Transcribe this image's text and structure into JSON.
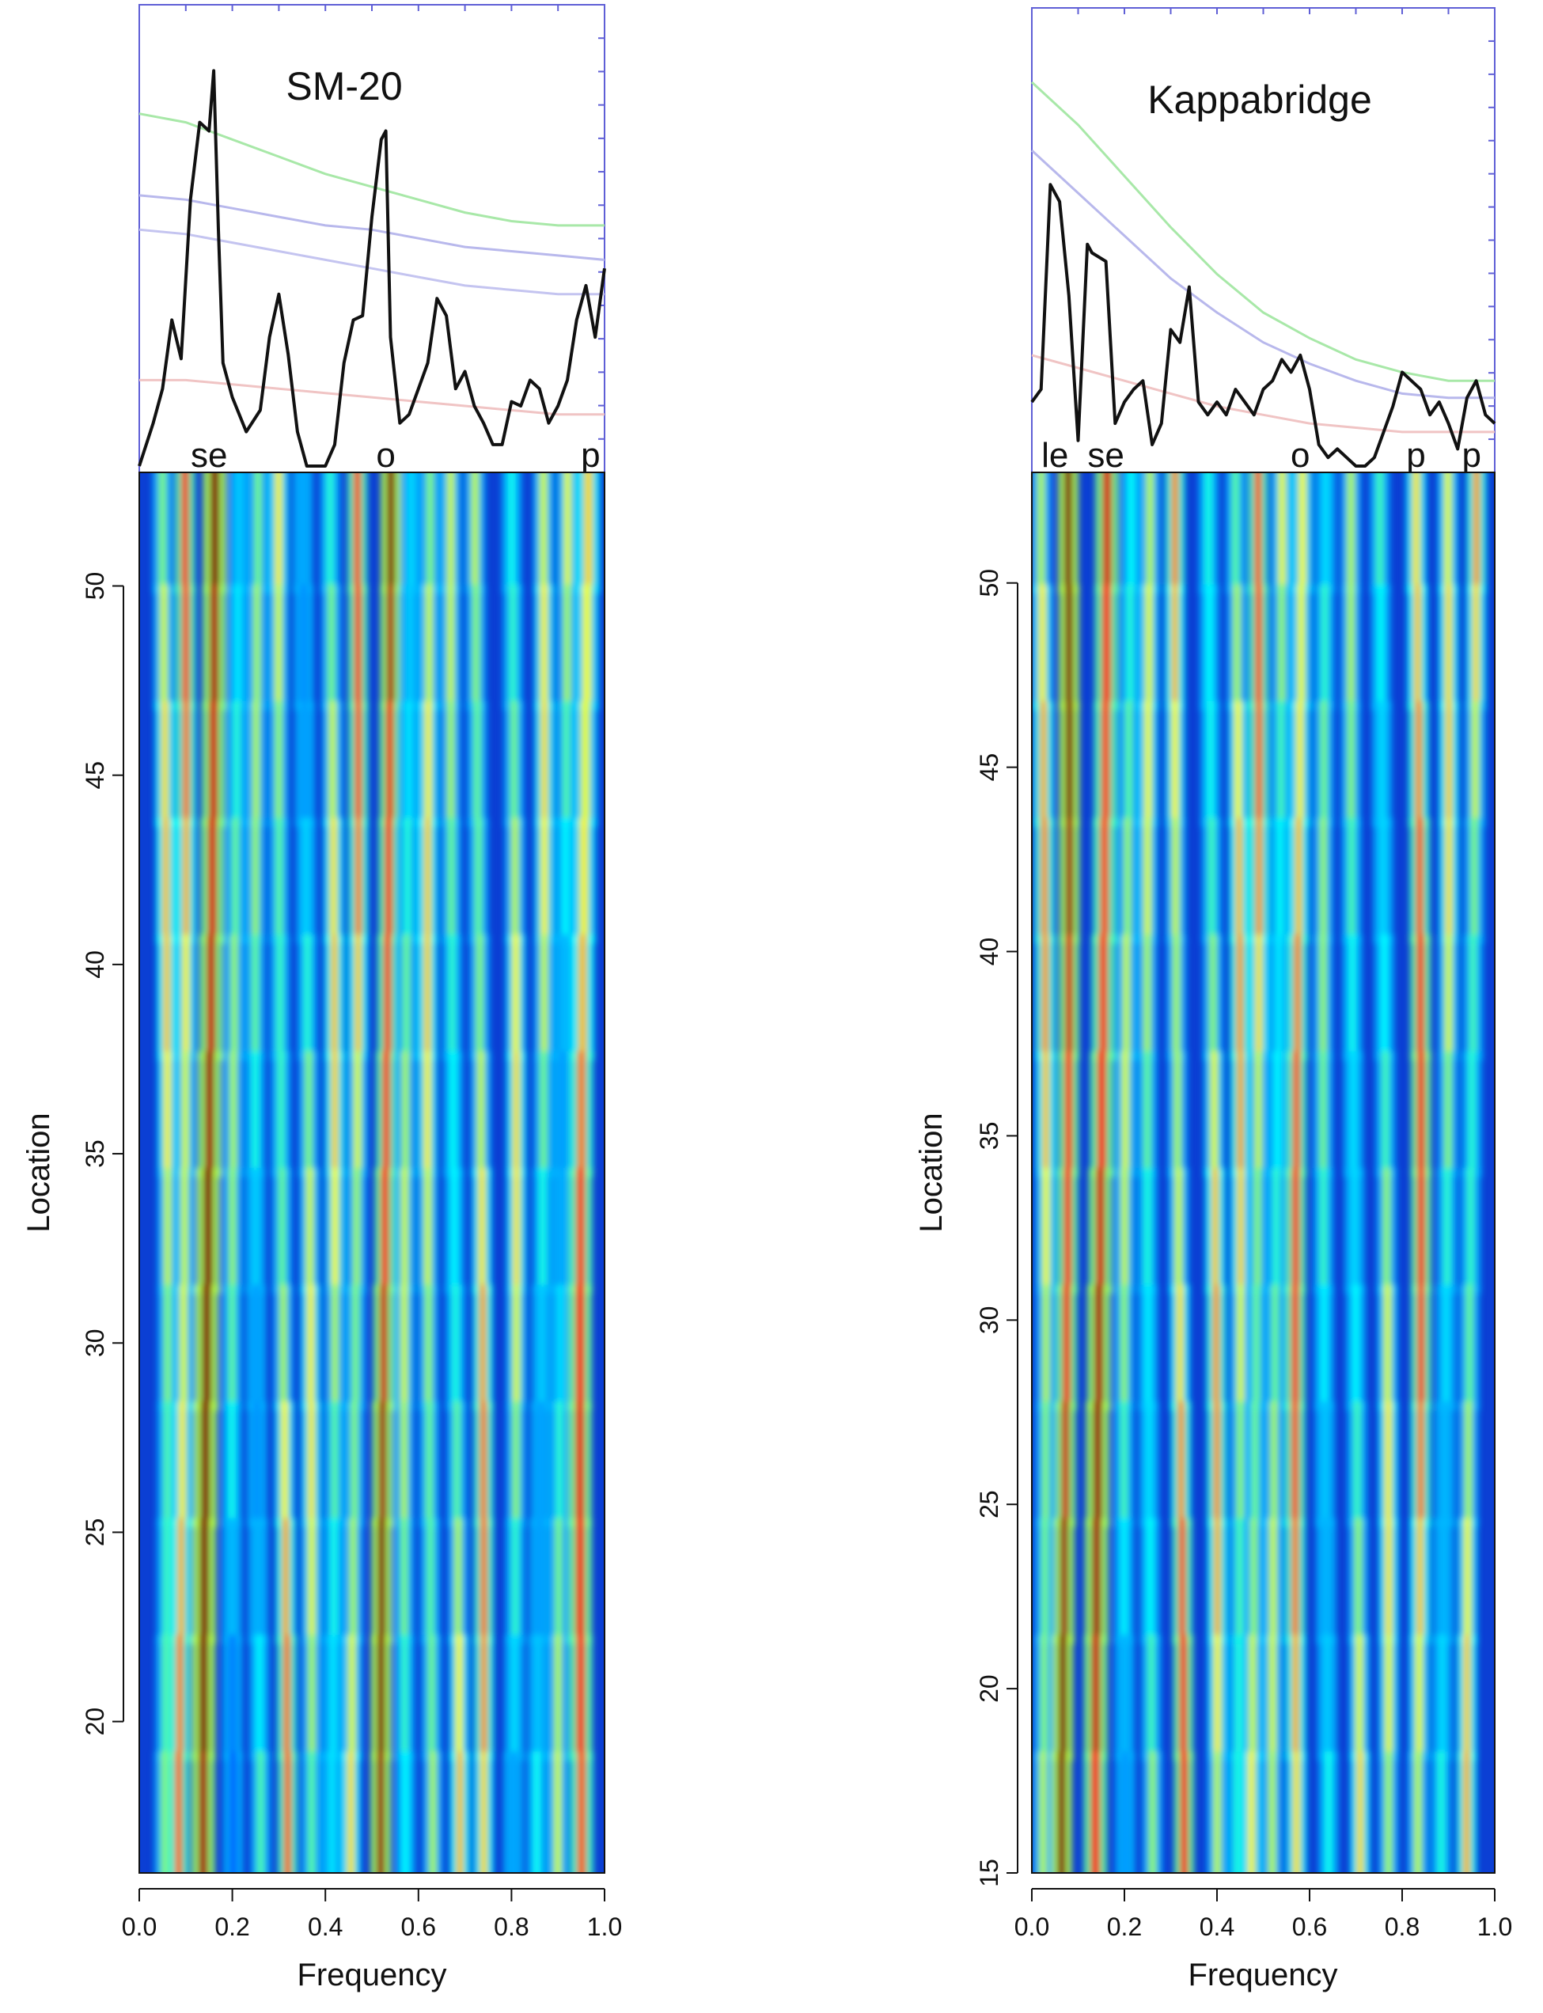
{
  "chart_data": [
    {
      "type": "heatmap",
      "title": "SM-20",
      "xlabel": "Frequency",
      "ylabel": "Location",
      "xlim": [
        0,
        1
      ],
      "ylim": [
        16,
        53
      ],
      "x_ticks": [
        "0.0",
        "0.2",
        "0.4",
        "0.6",
        "0.8",
        "1.0"
      ],
      "y_ticks": [
        "20",
        "25",
        "30",
        "35",
        "40",
        "45",
        "50"
      ],
      "band_labels": [
        {
          "text": "se",
          "x": 0.15
        },
        {
          "text": "o",
          "x": 0.53
        },
        {
          "text": "p",
          "x": 0.97
        }
      ],
      "spectrum": {
        "x": [
          0.0,
          0.03,
          0.05,
          0.07,
          0.09,
          0.11,
          0.13,
          0.15,
          0.16,
          0.17,
          0.18,
          0.2,
          0.23,
          0.26,
          0.28,
          0.3,
          0.32,
          0.34,
          0.36,
          0.38,
          0.4,
          0.42,
          0.44,
          0.46,
          0.48,
          0.5,
          0.52,
          0.53,
          0.54,
          0.56,
          0.58,
          0.6,
          0.62,
          0.64,
          0.66,
          0.68,
          0.7,
          0.72,
          0.74,
          0.76,
          0.78,
          0.8,
          0.82,
          0.84,
          0.86,
          0.88,
          0.9,
          0.92,
          0.94,
          0.96,
          0.98,
          1.0
        ],
        "y": [
          0.0,
          0.1,
          0.18,
          0.34,
          0.25,
          0.62,
          0.8,
          0.78,
          0.92,
          0.55,
          0.24,
          0.16,
          0.08,
          0.13,
          0.3,
          0.4,
          0.26,
          0.08,
          0.0,
          0.0,
          0.0,
          0.05,
          0.24,
          0.34,
          0.35,
          0.58,
          0.76,
          0.78,
          0.3,
          0.1,
          0.12,
          0.18,
          0.24,
          0.39,
          0.35,
          0.18,
          0.22,
          0.14,
          0.1,
          0.05,
          0.05,
          0.15,
          0.14,
          0.2,
          0.18,
          0.1,
          0.14,
          0.2,
          0.34,
          0.42,
          0.3,
          0.46
        ]
      },
      "significance_levels": [
        {
          "color": "#a8e8a8",
          "y": [
            0.82,
            0.8,
            0.76,
            0.72,
            0.68,
            0.65,
            0.62,
            0.59,
            0.57,
            0.56,
            0.56
          ]
        },
        {
          "color": "#b8b8ec",
          "y": [
            0.63,
            0.62,
            0.6,
            0.58,
            0.56,
            0.55,
            0.53,
            0.51,
            0.5,
            0.49,
            0.48
          ]
        },
        {
          "color": "#c4c4f0",
          "y": [
            0.55,
            0.54,
            0.52,
            0.5,
            0.48,
            0.46,
            0.44,
            0.42,
            0.41,
            0.4,
            0.4
          ]
        },
        {
          "color": "#f0c4c4",
          "y": [
            0.2,
            0.2,
            0.19,
            0.18,
            0.17,
            0.16,
            0.15,
            0.14,
            0.13,
            0.12,
            0.12
          ]
        }
      ],
      "bands": [
        {
          "f": 0.05,
          "w": 0.012,
          "amp": 0.5
        },
        {
          "f": 0.09,
          "w": 0.012,
          "amp": 0.64
        },
        {
          "f": 0.15,
          "w": 0.016,
          "amp": 0.98
        },
        {
          "f": 0.21,
          "w": 0.01,
          "amp": 0.45
        },
        {
          "f": 0.26,
          "w": 0.01,
          "amp": 0.48
        },
        {
          "f": 0.31,
          "w": 0.012,
          "amp": 0.6
        },
        {
          "f": 0.36,
          "w": 0.01,
          "amp": 0.42
        },
        {
          "f": 0.41,
          "w": 0.01,
          "amp": 0.45
        },
        {
          "f": 0.46,
          "w": 0.012,
          "amp": 0.62
        },
        {
          "f": 0.53,
          "w": 0.014,
          "amp": 0.95
        },
        {
          "f": 0.58,
          "w": 0.01,
          "amp": 0.52
        },
        {
          "f": 0.63,
          "w": 0.012,
          "amp": 0.6
        },
        {
          "f": 0.68,
          "w": 0.01,
          "amp": 0.48
        },
        {
          "f": 0.73,
          "w": 0.012,
          "amp": 0.55
        },
        {
          "f": 0.8,
          "w": 0.01,
          "amp": 0.45
        },
        {
          "f": 0.86,
          "w": 0.01,
          "amp": 0.48
        },
        {
          "f": 0.91,
          "w": 0.01,
          "amp": 0.5
        },
        {
          "f": 0.96,
          "w": 0.016,
          "amp": 0.8
        }
      ]
    },
    {
      "type": "heatmap",
      "title": "Kappabridge",
      "xlabel": "Frequency",
      "ylabel": "Location",
      "xlim": [
        0,
        1
      ],
      "ylim": [
        15,
        53
      ],
      "x_ticks": [
        "0.0",
        "0.2",
        "0.4",
        "0.6",
        "0.8",
        "1.0"
      ],
      "y_ticks": [
        "15",
        "20",
        "25",
        "30",
        "35",
        "40",
        "45",
        "50"
      ],
      "band_labels": [
        {
          "text": "le",
          "x": 0.05
        },
        {
          "text": "se",
          "x": 0.16
        },
        {
          "text": "o",
          "x": 0.58
        },
        {
          "text": "p",
          "x": 0.83
        },
        {
          "text": "p",
          "x": 0.95
        }
      ],
      "spectrum": {
        "x": [
          0.0,
          0.02,
          0.04,
          0.06,
          0.08,
          0.1,
          0.12,
          0.13,
          0.16,
          0.18,
          0.2,
          0.22,
          0.24,
          0.26,
          0.28,
          0.3,
          0.32,
          0.34,
          0.36,
          0.38,
          0.4,
          0.42,
          0.44,
          0.46,
          0.48,
          0.5,
          0.52,
          0.54,
          0.56,
          0.58,
          0.6,
          0.62,
          0.64,
          0.66,
          0.68,
          0.7,
          0.72,
          0.74,
          0.76,
          0.78,
          0.8,
          0.82,
          0.84,
          0.86,
          0.88,
          0.9,
          0.92,
          0.94,
          0.96,
          0.98,
          1.0
        ],
        "y": [
          0.15,
          0.18,
          0.66,
          0.62,
          0.4,
          0.06,
          0.52,
          0.5,
          0.48,
          0.1,
          0.15,
          0.18,
          0.2,
          0.05,
          0.1,
          0.32,
          0.29,
          0.42,
          0.15,
          0.12,
          0.15,
          0.12,
          0.18,
          0.15,
          0.12,
          0.18,
          0.2,
          0.25,
          0.22,
          0.26,
          0.18,
          0.05,
          0.02,
          0.04,
          0.02,
          0.0,
          0.0,
          0.02,
          0.08,
          0.14,
          0.22,
          0.2,
          0.18,
          0.12,
          0.15,
          0.1,
          0.04,
          0.16,
          0.2,
          0.12,
          0.1
        ]
      },
      "significance_levels": [
        {
          "color": "#a8e8a8",
          "y": [
            0.9,
            0.8,
            0.68,
            0.56,
            0.45,
            0.36,
            0.3,
            0.25,
            0.22,
            0.2,
            0.2
          ]
        },
        {
          "color": "#b8b8ec",
          "y": [
            0.74,
            0.64,
            0.54,
            0.44,
            0.36,
            0.29,
            0.24,
            0.2,
            0.17,
            0.16,
            0.16
          ]
        },
        {
          "color": "#f0c4c4",
          "y": [
            0.26,
            0.23,
            0.2,
            0.17,
            0.14,
            0.12,
            0.1,
            0.09,
            0.08,
            0.08,
            0.08
          ]
        }
      ],
      "bands": [
        {
          "f": 0.02,
          "w": 0.012,
          "amp": 0.55
        },
        {
          "f": 0.07,
          "w": 0.014,
          "amp": 0.92
        },
        {
          "f": 0.15,
          "w": 0.016,
          "amp": 0.88
        },
        {
          "f": 0.21,
          "w": 0.01,
          "amp": 0.5
        },
        {
          "f": 0.26,
          "w": 0.01,
          "amp": 0.55
        },
        {
          "f": 0.32,
          "w": 0.012,
          "amp": 0.7
        },
        {
          "f": 0.39,
          "w": 0.01,
          "amp": 0.52
        },
        {
          "f": 0.44,
          "w": 0.01,
          "amp": 0.5
        },
        {
          "f": 0.48,
          "w": 0.012,
          "amp": 0.6
        },
        {
          "f": 0.53,
          "w": 0.01,
          "amp": 0.52
        },
        {
          "f": 0.58,
          "w": 0.014,
          "amp": 0.78
        },
        {
          "f": 0.64,
          "w": 0.01,
          "amp": 0.45
        },
        {
          "f": 0.7,
          "w": 0.01,
          "amp": 0.45
        },
        {
          "f": 0.76,
          "w": 0.01,
          "amp": 0.42
        },
        {
          "f": 0.83,
          "w": 0.014,
          "amp": 0.7
        },
        {
          "f": 0.89,
          "w": 0.01,
          "amp": 0.5
        },
        {
          "f": 0.95,
          "w": 0.012,
          "amp": 0.62
        }
      ]
    }
  ]
}
